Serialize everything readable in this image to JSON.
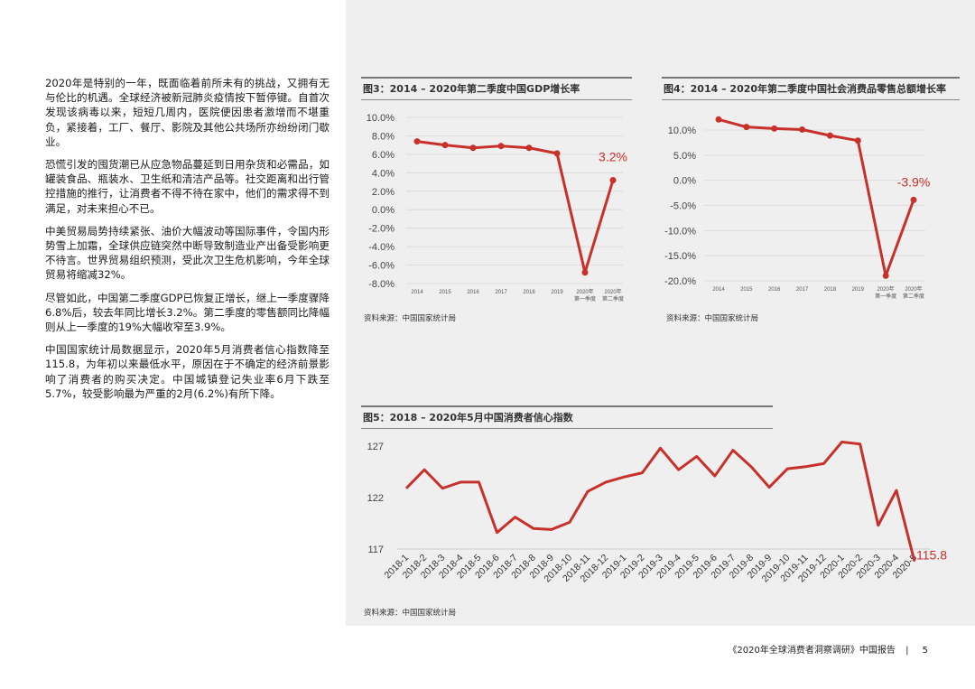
{
  "body_text": {
    "paragraphs": [
      "2020年是特别的一年，既面临着前所未有的挑战，又拥有无与伦比的机遇。全球经济被新冠肺炎疫情按下暂停键。自首次发现该病毒以来，短短几周内，医院便因患者激增而不堪重负，紧接着，工厂、餐厅、影院及其他公共场所亦纷纷闭门歇业。",
      "恐慌引发的囤货潮已从应急物品蔓延到日用杂货和必需品，如罐装食品、瓶装水、卫生纸和清洁产品等。社交距离和出行管控措施的推行，让消费者不得不待在家中，他们的需求得不到满足，对未来担心不已。",
      "中美贸易局势持续紧张、油价大幅波动等国际事件，令国内形势雪上加霜，全球供应链突然中断导致制造业产出备受影响更不待言。世界贸易组织预测，受此次卫生危机影响，今年全球贸易将缩减32%。",
      "尽管如此，中国第二季度GDP已恢复正增长，继上一季度骤降6.8%后，较去年同比增长3.2%。第二季度的零售额同比降幅则从上一季度的19%大幅收窄至3.9%。",
      "中国国家统计局数据显示，2020年5月消费者信心指数降至115.8，为年初以来最低水平，原因在于不确定的经济前景影响了消费者的购买决定。中国城镇登记失业率6月下跌至5.7%，较受影响最为严重的2月(6.2%)有所下降。"
    ]
  },
  "colors": {
    "line": "#c8302a",
    "panel": "#efefef",
    "grid": "#dcdcdc"
  },
  "chart_data": [
    {
      "type": "line",
      "title": "图3：2014 – 2020年第二季度中国GDP增长率",
      "categories": [
        "2014",
        "2015",
        "2016",
        "2017",
        "2018",
        "2019",
        "2020年\n第一季度",
        "2020年\n第二季度"
      ],
      "values": [
        7.4,
        7.0,
        6.7,
        6.9,
        6.7,
        6.1,
        -6.8,
        3.2
      ],
      "yticks": [
        "10.0%",
        "8.0%",
        "6.0%",
        "4.0%",
        "2.0%",
        "0.0%",
        "-2.0%",
        "-4.0%",
        "-6.0%",
        "-8.0%"
      ],
      "ylim": [
        -8,
        10
      ],
      "annotation": "3.2%",
      "grid": true,
      "source": "资料来源：中国国家统计局"
    },
    {
      "type": "line",
      "title": "图4：2014 – 2020年第二季度中国社会消费品零售总额增长率",
      "categories": [
        "2014",
        "2015",
        "2016",
        "2017",
        "2018",
        "2019",
        "2020年\n第一季度",
        "2020年\n第二季度"
      ],
      "values": [
        12.1,
        10.6,
        10.3,
        10.1,
        8.9,
        7.9,
        -19.0,
        -3.9
      ],
      "yticks": [
        "10.0%",
        "5.0%",
        "0.0%",
        "-5.0%",
        "-10.0%",
        "-15.0%",
        "-20.0%"
      ],
      "ylim": [
        -20,
        10
      ],
      "annotation": "-3.9%",
      "grid": true,
      "source": "资料来源：中国国家统计局"
    },
    {
      "type": "line",
      "title": "图5：2018 – 2020年5月中国消费者信心指数",
      "categories": [
        "2018-1",
        "2018-2",
        "2018-3",
        "2018-4",
        "2018-5",
        "2018-6",
        "2018-7",
        "2018-8",
        "2018-9",
        "2018-10",
        "2018-11",
        "2018-12",
        "2019-1",
        "2019-2",
        "2019-3",
        "2019-4",
        "2019-5",
        "2019-6",
        "2019-7",
        "2019-8",
        "2019-9",
        "2019-10",
        "2019-11",
        "2019-12",
        "2020-1",
        "2020-2",
        "2020-3",
        "2020-4",
        "2020-5"
      ],
      "values": [
        122.9,
        124.7,
        122.9,
        123.5,
        123.5,
        118.6,
        120.1,
        119.0,
        118.9,
        119.6,
        122.6,
        123.5,
        124.0,
        124.4,
        126.8,
        124.7,
        126.0,
        124.1,
        126.6,
        125.0,
        123.0,
        124.8,
        125.0,
        125.3,
        127.4,
        127.2,
        119.3,
        122.7,
        115.8
      ],
      "yticks": [
        "127",
        "122",
        "117"
      ],
      "ylim": [
        117,
        127
      ],
      "annotation": "115.8",
      "grid": false,
      "source": "资料来源：中国国家统计局"
    }
  ],
  "footer": {
    "report": "《2020年全球消费者洞察调研》中国报告",
    "separator": "|",
    "page": "5"
  }
}
